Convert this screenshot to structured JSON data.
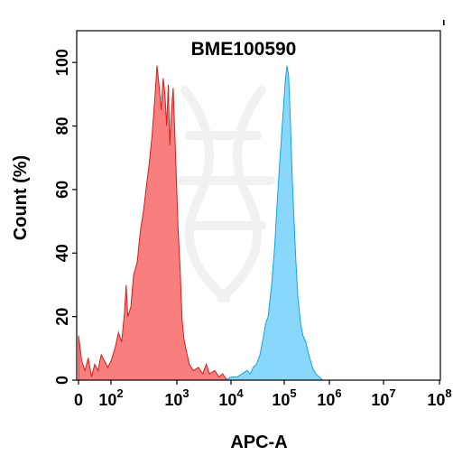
{
  "chart_data": {
    "type": "area",
    "title": "BME100590",
    "xlabel": "APC-A",
    "ylabel": "Count  (%)",
    "x_scale": "biexponential",
    "xlim": [
      0,
      100000000
    ],
    "ylim": [
      0,
      110
    ],
    "x_ticks": [
      {
        "value": 0,
        "base": "0",
        "exp": ""
      },
      {
        "value": 100,
        "base": "10",
        "exp": "2"
      },
      {
        "value": 1000,
        "base": "10",
        "exp": "3"
      },
      {
        "value": 10000,
        "base": "10",
        "exp": "4"
      },
      {
        "value": 100000,
        "base": "10",
        "exp": "5"
      },
      {
        "value": 1000000,
        "base": "10",
        "exp": "6"
      },
      {
        "value": 10000000,
        "base": "10",
        "exp": "7"
      },
      {
        "value": 100000000,
        "base": "10",
        "exp": "8"
      }
    ],
    "y_ticks": [
      {
        "value": 0,
        "label": "0"
      },
      {
        "value": 20,
        "label": "20"
      },
      {
        "value": 40,
        "label": "40"
      },
      {
        "value": 60,
        "label": "60"
      },
      {
        "value": 80,
        "label": "80"
      },
      {
        "value": 100,
        "label": "100"
      }
    ],
    "grid": false,
    "legend": "none",
    "series": [
      {
        "color": "#f87171",
        "stroke": "#d91c1c",
        "points": [
          [
            0,
            14
          ],
          [
            10,
            6
          ],
          [
            20,
            3
          ],
          [
            30,
            7
          ],
          [
            40,
            1
          ],
          [
            50,
            5
          ],
          [
            60,
            3
          ],
          [
            70,
            8
          ],
          [
            80,
            6
          ],
          [
            90,
            4
          ],
          [
            100,
            6
          ],
          [
            115,
            10
          ],
          [
            130,
            15
          ],
          [
            145,
            12
          ],
          [
            160,
            21
          ],
          [
            170,
            30
          ],
          [
            180,
            20
          ],
          [
            200,
            23
          ],
          [
            220,
            33
          ],
          [
            250,
            37
          ],
          [
            280,
            47
          ],
          [
            310,
            53
          ],
          [
            340,
            60
          ],
          [
            380,
            68
          ],
          [
            420,
            77
          ],
          [
            460,
            88
          ],
          [
            500,
            99
          ],
          [
            540,
            92
          ],
          [
            580,
            85
          ],
          [
            620,
            95
          ],
          [
            660,
            90
          ],
          [
            700,
            80
          ],
          [
            740,
            93
          ],
          [
            780,
            74
          ],
          [
            830,
            85
          ],
          [
            880,
            92
          ],
          [
            930,
            78
          ],
          [
            980,
            64
          ],
          [
            1050,
            48
          ],
          [
            1150,
            35
          ],
          [
            1250,
            19
          ],
          [
            1350,
            13
          ],
          [
            1500,
            9
          ],
          [
            1700,
            5
          ],
          [
            2000,
            3
          ],
          [
            2500,
            4
          ],
          [
            3000,
            2
          ],
          [
            3500,
            5
          ],
          [
            4000,
            2
          ],
          [
            5000,
            3
          ],
          [
            6000,
            1
          ],
          [
            7000,
            2
          ],
          [
            8000,
            0.5
          ],
          [
            9000,
            0
          ]
        ]
      },
      {
        "color": "#7dd3fc",
        "stroke": "#0ea5e9",
        "points": [
          [
            8000,
            0
          ],
          [
            10000,
            1
          ],
          [
            13000,
            1
          ],
          [
            16000,
            2
          ],
          [
            20000,
            3
          ],
          [
            23000,
            2
          ],
          [
            26000,
            4
          ],
          [
            30000,
            5
          ],
          [
            35000,
            8
          ],
          [
            40000,
            13
          ],
          [
            45000,
            18
          ],
          [
            50000,
            20
          ],
          [
            58000,
            30
          ],
          [
            66000,
            42
          ],
          [
            75000,
            58
          ],
          [
            85000,
            72
          ],
          [
            95000,
            84
          ],
          [
            105000,
            94
          ],
          [
            115000,
            99
          ],
          [
            125000,
            96
          ],
          [
            135000,
            84
          ],
          [
            150000,
            64
          ],
          [
            165000,
            50
          ],
          [
            180000,
            38
          ],
          [
            200000,
            26
          ],
          [
            230000,
            18
          ],
          [
            260000,
            14
          ],
          [
            300000,
            12
          ],
          [
            350000,
            8
          ],
          [
            420000,
            4
          ],
          [
            500000,
            2
          ],
          [
            600000,
            1
          ],
          [
            700000,
            0
          ]
        ]
      }
    ]
  }
}
